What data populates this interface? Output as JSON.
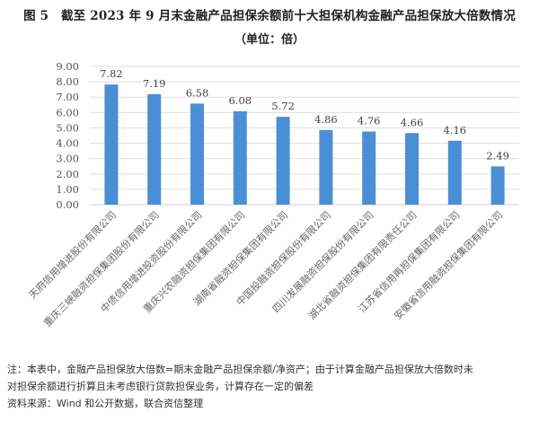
{
  "header": {
    "title": "图 5　截至 2023 年 9 月末金融产品担保余额前十大担保机构金融产品担保放大倍数情况",
    "subtitle": "（单位：倍）"
  },
  "chart_data": {
    "type": "bar",
    "title": "截至 2023 年 9 月末金融产品担保余额前十大担保机构金融产品担保放大倍数情况",
    "subtitle": "（单位：倍）",
    "xlabel": "",
    "ylabel": "倍",
    "ylim": [
      0,
      9
    ],
    "yticks": [
      "0.00",
      "1.00",
      "2.00",
      "3.00",
      "4.00",
      "5.00",
      "6.00",
      "7.00",
      "8.00",
      "9.00"
    ],
    "grid": true,
    "legend": "none",
    "bar_color": "#4a8fd6",
    "categories": [
      "天府信用增进股份有限公司",
      "重庆三峡融资担保集团股份有限公司",
      "中债信用增进投资股份有限公司",
      "重庆兴农融资担保集团有限公司",
      "湖南省融资担保集团有限公司",
      "中国投融资担保股份有限公司",
      "四川发展融资担保股份有限公司",
      "湖北省融资担保集团有限责任公司",
      "江苏省信用再担保集团有限公司",
      "安徽省信用融资担保集团有限公司"
    ],
    "values": [
      7.82,
      7.19,
      6.58,
      6.08,
      5.72,
      4.86,
      4.76,
      4.66,
      4.16,
      2.49
    ],
    "value_labels": [
      "7.82",
      "7.19",
      "6.58",
      "6.08",
      "5.72",
      "4.86",
      "4.76",
      "4.66",
      "4.16",
      "2.49"
    ]
  },
  "footer": {
    "note_line1": "注：本表中，金融产品担保放大倍数=期末金融产品担保余额/净资产；由于计算金融产品担保放大倍数时未",
    "note_line2": "对担保余额进行折算且未考虑银行贷款担保业务，计算存在一定的偏差",
    "source": "资料来源：Wind 和公开数据，联合资信整理"
  }
}
